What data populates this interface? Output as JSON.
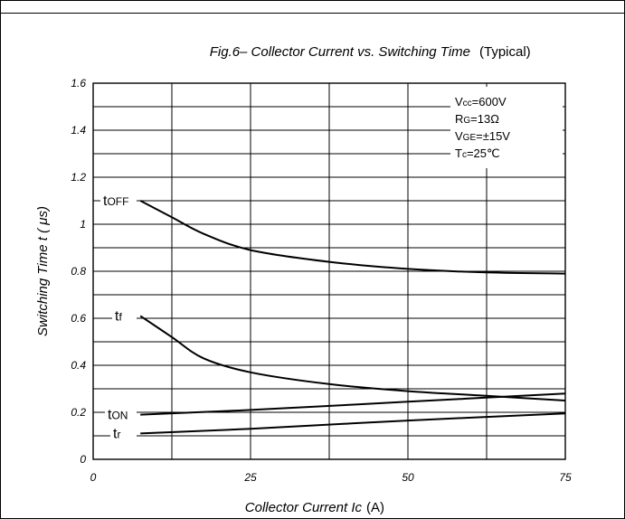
{
  "chart_data": {
    "type": "line",
    "title": "Fig.6– Collector Current vs. Switching Time",
    "title_suffix": "(Typical)",
    "xlabel": "Collector Current Ic",
    "xlabel_unit": "(A)",
    "ylabel": "Switching Time t ( μs)",
    "xlim": [
      0,
      75
    ],
    "ylim": [
      0,
      1.6
    ],
    "x_ticks": [
      "0",
      "25",
      "50",
      "75"
    ],
    "y_ticks": [
      "0",
      "0.2",
      "0.4",
      "0.6",
      "0.8",
      "1",
      "1.2",
      "1.4",
      "1.6"
    ],
    "grid": true,
    "conditions": [
      "Vcc=600V",
      "RG=13Ω",
      "VGE=±15V",
      "Tc=25℃"
    ],
    "series": [
      {
        "name": "tOFF",
        "x": [
          7.5,
          12.5,
          17.5,
          25,
          37.5,
          50,
          62.5,
          75
        ],
        "y": [
          1.1,
          1.03,
          0.96,
          0.89,
          0.84,
          0.81,
          0.795,
          0.79
        ]
      },
      {
        "name": "tf",
        "x": [
          7.5,
          12.5,
          17.5,
          25,
          37.5,
          50,
          62.5,
          75
        ],
        "y": [
          0.61,
          0.52,
          0.43,
          0.37,
          0.32,
          0.29,
          0.27,
          0.25
        ]
      },
      {
        "name": "tON",
        "x": [
          7.5,
          25,
          50,
          75
        ],
        "y": [
          0.19,
          0.21,
          0.245,
          0.28
        ]
      },
      {
        "name": "tr",
        "x": [
          7.5,
          25,
          50,
          75
        ],
        "y": [
          0.11,
          0.13,
          0.165,
          0.195
        ]
      }
    ]
  }
}
